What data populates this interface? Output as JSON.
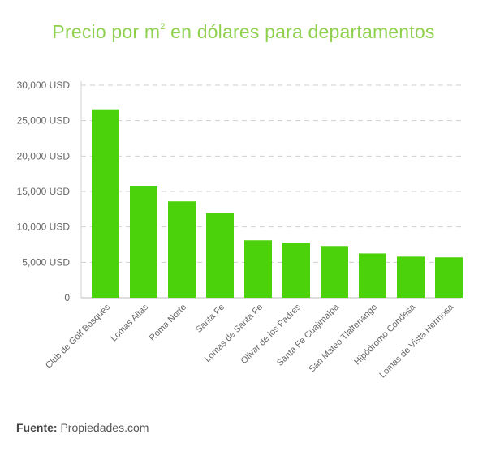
{
  "chart_data": {
    "type": "bar",
    "title_prefix": "Precio por m",
    "title_sup": "2",
    "title_suffix": " en dólares para departamentos",
    "categories": [
      "Club de Golf Bosques",
      "Lomas Altas",
      "Roma Norte",
      "Santa Fe",
      "Lomas de Santa Fe",
      "Olivar de los Padres",
      "Santa Fe Cuajimalpa",
      "San Mateo Tlaltenango",
      "Hipódromo Condesa",
      "Lomas de Vista Hermosa"
    ],
    "values": [
      26600,
      15800,
      13600,
      11950,
      8100,
      7750,
      7300,
      6250,
      5800,
      5700
    ],
    "y_ticks": [
      0,
      5000,
      10000,
      15000,
      20000,
      25000,
      30000
    ],
    "y_tick_labels": [
      "0",
      "5,000 USD",
      "10,000 USD",
      "15,000 USD",
      "20,000 USD",
      "25,000 USD",
      "30,000 USD"
    ],
    "ylim": [
      0,
      30000
    ],
    "grid": true,
    "colors": {
      "bar": "#4cd20a",
      "title": "#8fd14f",
      "grid": "#cfcfcf",
      "text": "#666666"
    }
  },
  "footer": {
    "label": "Fuente:",
    "source": "Propiedades.com"
  }
}
